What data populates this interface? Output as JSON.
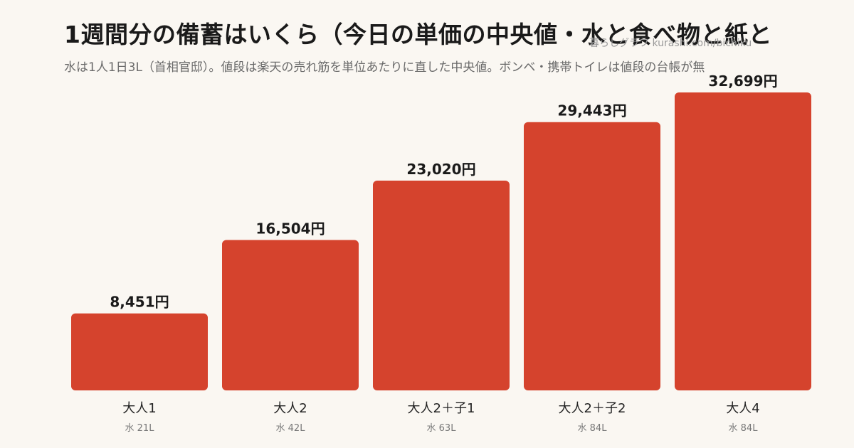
{
  "header": {
    "title": "1週間分の備蓄はいくら（今日の単価の中央値・水と食べ物と紙と",
    "subtitle": "水は1人1日3L（首相官邸）。値段は楽天の売れ筋を単位あたりに直した中央値。ボンベ・携帯トイレは値段の台帳が無",
    "credit": "暮らしグラフ kurashi.com/bichiku"
  },
  "colors": {
    "bar": "#d5432d",
    "background": "#faf7f2"
  },
  "chart_data": {
    "type": "bar",
    "categories": [
      "大人1",
      "大人2",
      "大人2＋子1",
      "大人2＋子2",
      "大人4"
    ],
    "sublabels": [
      "水 21L",
      "水 42L",
      "水 63L",
      "水 84L",
      "水 84L"
    ],
    "values": [
      8451,
      16504,
      23020,
      29443,
      32699
    ],
    "value_labels": [
      "8,451円",
      "16,504円",
      "23,020円",
      "29,443円",
      "32,699円"
    ],
    "ylim": [
      0,
      36000
    ],
    "grid": false
  }
}
